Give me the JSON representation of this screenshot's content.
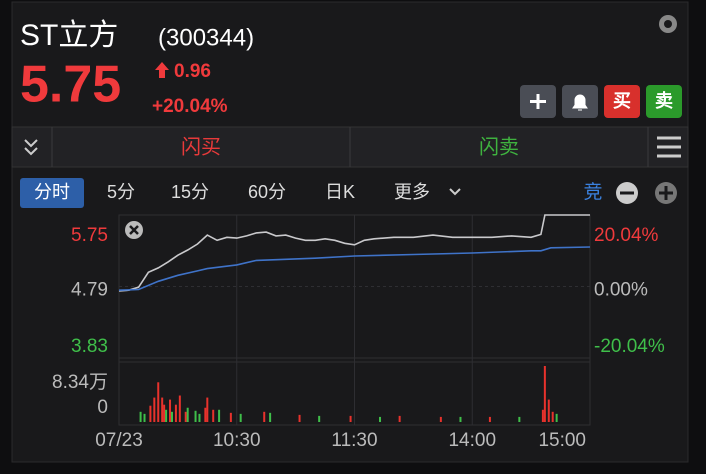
{
  "header": {
    "name": "ST立方",
    "code": "(300344)",
    "price": "5.75",
    "change": "0.96",
    "change_pct": "+20.04%"
  },
  "buttons": {
    "buy": "买",
    "sell": "卖"
  },
  "flash": {
    "buy": "闪买",
    "sell": "闪卖"
  },
  "tabs": [
    "分时",
    "5分",
    "15分",
    "60分",
    "日K",
    "更多"
  ],
  "auction": "竞",
  "chart": {
    "type": "line",
    "xlim": [
      0,
      240
    ],
    "xticks": [
      {
        "value": 0,
        "label": "07/23"
      },
      {
        "value": 60,
        "label": "10:30"
      },
      {
        "value": 120,
        "label": "11:30"
      },
      {
        "value": 180,
        "label": "14:00"
      },
      {
        "value": 240,
        "label": "15:00"
      }
    ],
    "ylim": [
      3.83,
      5.75
    ],
    "yticks": [
      5.75,
      4.79,
      3.83
    ],
    "y2lim": [
      -20.04,
      20.04
    ],
    "y2ticks": [
      {
        "value": 20.04,
        "label": "20.04%"
      },
      {
        "value": 0,
        "label": "0.00%"
      },
      {
        "value": -20.04,
        "label": "-20.04%"
      }
    ],
    "series": [
      {
        "color": "#c9c9cc",
        "x": [
          0,
          5,
          10,
          15,
          20,
          25,
          30,
          35,
          40,
          45,
          50,
          55,
          60,
          65,
          70,
          75,
          80,
          85,
          90,
          95,
          100,
          105,
          110,
          115,
          120,
          125,
          130,
          140,
          150,
          160,
          170,
          180,
          190,
          200,
          210,
          215,
          217,
          240
        ],
        "values": [
          4.73,
          4.74,
          4.78,
          4.98,
          5.04,
          5.12,
          5.21,
          5.28,
          5.36,
          5.48,
          5.41,
          5.45,
          5.44,
          5.47,
          5.51,
          5.52,
          5.47,
          5.48,
          5.44,
          5.41,
          5.41,
          5.43,
          5.41,
          5.37,
          5.35,
          5.41,
          5.43,
          5.45,
          5.45,
          5.48,
          5.45,
          5.45,
          5.45,
          5.47,
          5.45,
          5.49,
          5.75,
          5.75
        ]
      },
      {
        "color": "#3f73c9",
        "x": [
          0,
          10,
          20,
          30,
          40,
          45,
          60,
          70,
          100,
          120,
          150,
          180,
          210,
          215,
          220,
          240
        ],
        "values": [
          4.74,
          4.75,
          4.86,
          4.94,
          5.0,
          5.03,
          5.08,
          5.14,
          5.17,
          5.2,
          5.22,
          5.24,
          5.27,
          5.27,
          5.31,
          5.32
        ]
      }
    ],
    "volume": {
      "ylim": [
        0,
        83400
      ],
      "yticks": [
        {
          "value": 83400,
          "label": "8.34万"
        },
        0
      ],
      "up": {
        "color": "#e8322c",
        "x": [
          16,
          18,
          20,
          22,
          23,
          26,
          29,
          31,
          34,
          44,
          45,
          48,
          57,
          74,
          92,
          118,
          143,
          164,
          189,
          216,
          217,
          219,
          221
        ],
        "values": [
          24261,
          36390,
          59138,
          36390,
          25778,
          33360,
          25778,
          39425,
          15164,
          21229,
          36390,
          18196,
          13647,
          15164,
          10614,
          9098,
          9098,
          7582,
          7582,
          18196,
          83400,
          33360,
          15164
        ]
      },
      "down": {
        "color": "#3fbf4a",
        "x": [
          11,
          13,
          24,
          27,
          35,
          39,
          41,
          51,
          62,
          77,
          102,
          133,
          174,
          204,
          223
        ],
        "values": [
          15164,
          12131,
          18196,
          15164,
          21229,
          16680,
          12131,
          18196,
          12131,
          13647,
          9098,
          7582,
          7582,
          7582,
          12131
        ]
      }
    }
  }
}
